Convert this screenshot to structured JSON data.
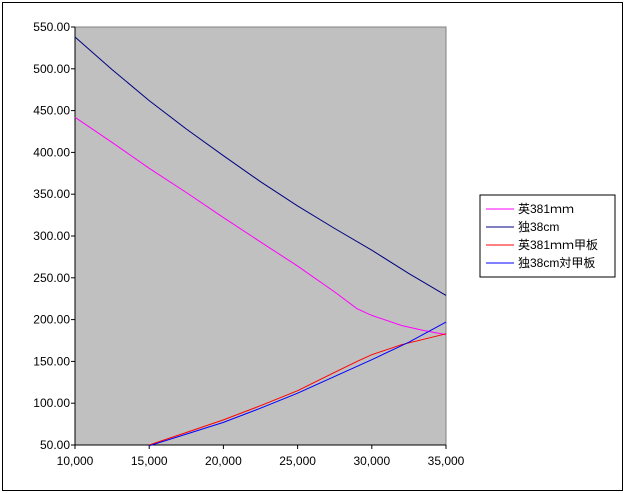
{
  "chart_data": {
    "type": "line",
    "title": "",
    "xlabel": "",
    "ylabel": "",
    "xlim": [
      10000,
      35000
    ],
    "ylim": [
      50,
      550
    ],
    "x_ticks": [
      "10,000",
      "15,000",
      "20,000",
      "25,000",
      "30,000",
      "35,000"
    ],
    "y_ticks": [
      "50.00",
      "100.00",
      "150.00",
      "200.00",
      "250.00",
      "300.00",
      "350.00",
      "400.00",
      "450.00",
      "500.00",
      "550.00"
    ],
    "plot_background": "#c0c0c0",
    "grid": false,
    "legend_position": "right",
    "series": [
      {
        "name": "英381ｍｍ",
        "color": "#ff00ff",
        "x": [
          10000,
          12500,
          15000,
          17500,
          20000,
          22500,
          25000,
          27500,
          29000,
          30000,
          32000,
          33500,
          35000
        ],
        "y": [
          442,
          412,
          381,
          352,
          322,
          293,
          264,
          233,
          213,
          205,
          193,
          187,
          182
        ]
      },
      {
        "name": "独38cm",
        "color": "#000080",
        "x": [
          10000,
          12500,
          15000,
          17500,
          20000,
          22500,
          25000,
          27500,
          30000,
          32500,
          35000
        ],
        "y": [
          538,
          499,
          462,
          428,
          396,
          365,
          336,
          309,
          283,
          255,
          229
        ]
      },
      {
        "name": "英381ｍｍ甲板",
        "color": "#ff0000",
        "x": [
          15000,
          17500,
          20000,
          22500,
          25000,
          27500,
          29000,
          30000,
          32000,
          35000
        ],
        "y": [
          50,
          65,
          80,
          97,
          115,
          137,
          150,
          158,
          170,
          183
        ]
      },
      {
        "name": "独38cm対甲板",
        "color": "#0000ff",
        "x": [
          15000,
          17500,
          20000,
          22500,
          25000,
          27500,
          30000,
          32500,
          35000
        ],
        "y": [
          49,
          63,
          77,
          94,
          112,
          132,
          152,
          173,
          197
        ]
      }
    ]
  }
}
